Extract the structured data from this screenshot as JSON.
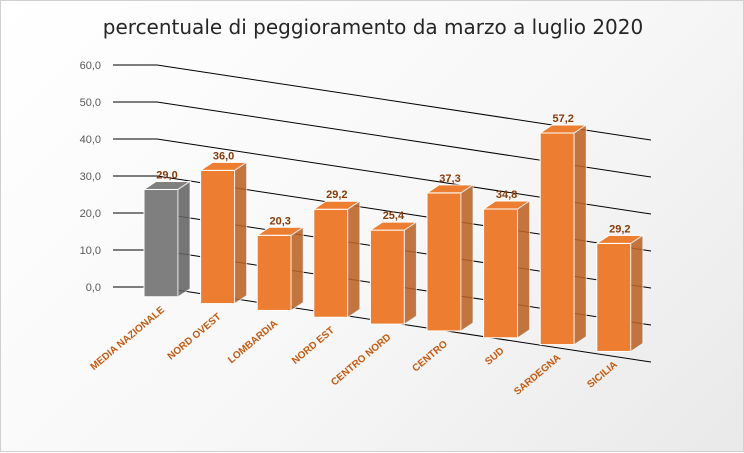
{
  "chart_data": {
    "type": "bar",
    "title": "percentuale di peggioramento da marzo a luglio 2020",
    "categories": [
      "MEDIA NAZIONALE",
      "NORD OVEST",
      "LOMBARDIA",
      "NORD EST",
      "CENTRO NORD",
      "CENTRO",
      "SUD",
      "SARDEGNA",
      "SICILIA"
    ],
    "values": [
      29.0,
      36.0,
      20.3,
      29.2,
      25.4,
      37.3,
      34.8,
      57.2,
      29.2
    ],
    "value_labels": [
      "29,0",
      "36,0",
      "20,3",
      "29,2",
      "25,4",
      "37,3",
      "34,8",
      "57,2",
      "29,2"
    ],
    "ylim": [
      0,
      60
    ],
    "yticks": [
      "0,0",
      "10,0",
      "20,0",
      "30,0",
      "40,0",
      "50,0",
      "60,0"
    ],
    "grid": true,
    "projection": "3d-column",
    "colors": {
      "highlight_bar": "#7f7f7f",
      "bar": "#ed7d31",
      "category_label": "#c55a11",
      "value_label": "#843c0c",
      "tick_label": "#595959",
      "gridline": "#000000"
    }
  }
}
